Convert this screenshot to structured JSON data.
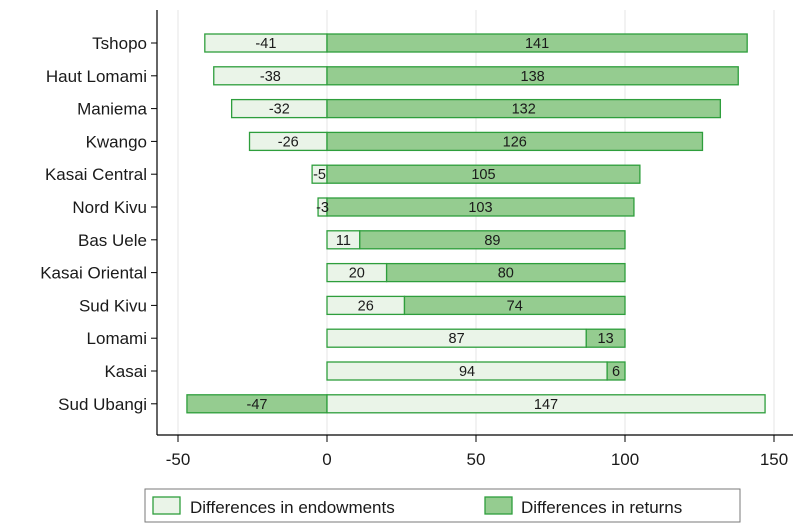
{
  "chart_data": {
    "type": "bar",
    "orientation": "horizontal",
    "stacked": true,
    "title": "",
    "xlabel": "",
    "ylabel": "",
    "xlim": [
      -50,
      155
    ],
    "xticks": [
      -50,
      0,
      50,
      100,
      150
    ],
    "categories": [
      "Tshopo",
      "Haut Lomami",
      "Maniema",
      "Kwango",
      "Kasai Central",
      "Nord Kivu",
      "Bas Uele",
      "Kasai Oriental",
      "Sud Kivu",
      "Lomami",
      "Kasai",
      "Sud Ubangi"
    ],
    "series": [
      {
        "name": "Differences in endowments",
        "color": "#eaf4e8",
        "values": [
          -41,
          -38,
          -32,
          -26,
          -5,
          -3,
          11,
          20,
          26,
          87,
          94,
          147
        ]
      },
      {
        "name": "Differences in returns",
        "color": "#95cc90",
        "values": [
          141,
          138,
          132,
          126,
          105,
          103,
          89,
          80,
          74,
          13,
          6,
          -47
        ]
      }
    ],
    "bar_edge_color": "#2e9e3c",
    "grid": {
      "vertical": true,
      "color": "#e6e6e6"
    },
    "legend_position": "bottom"
  }
}
